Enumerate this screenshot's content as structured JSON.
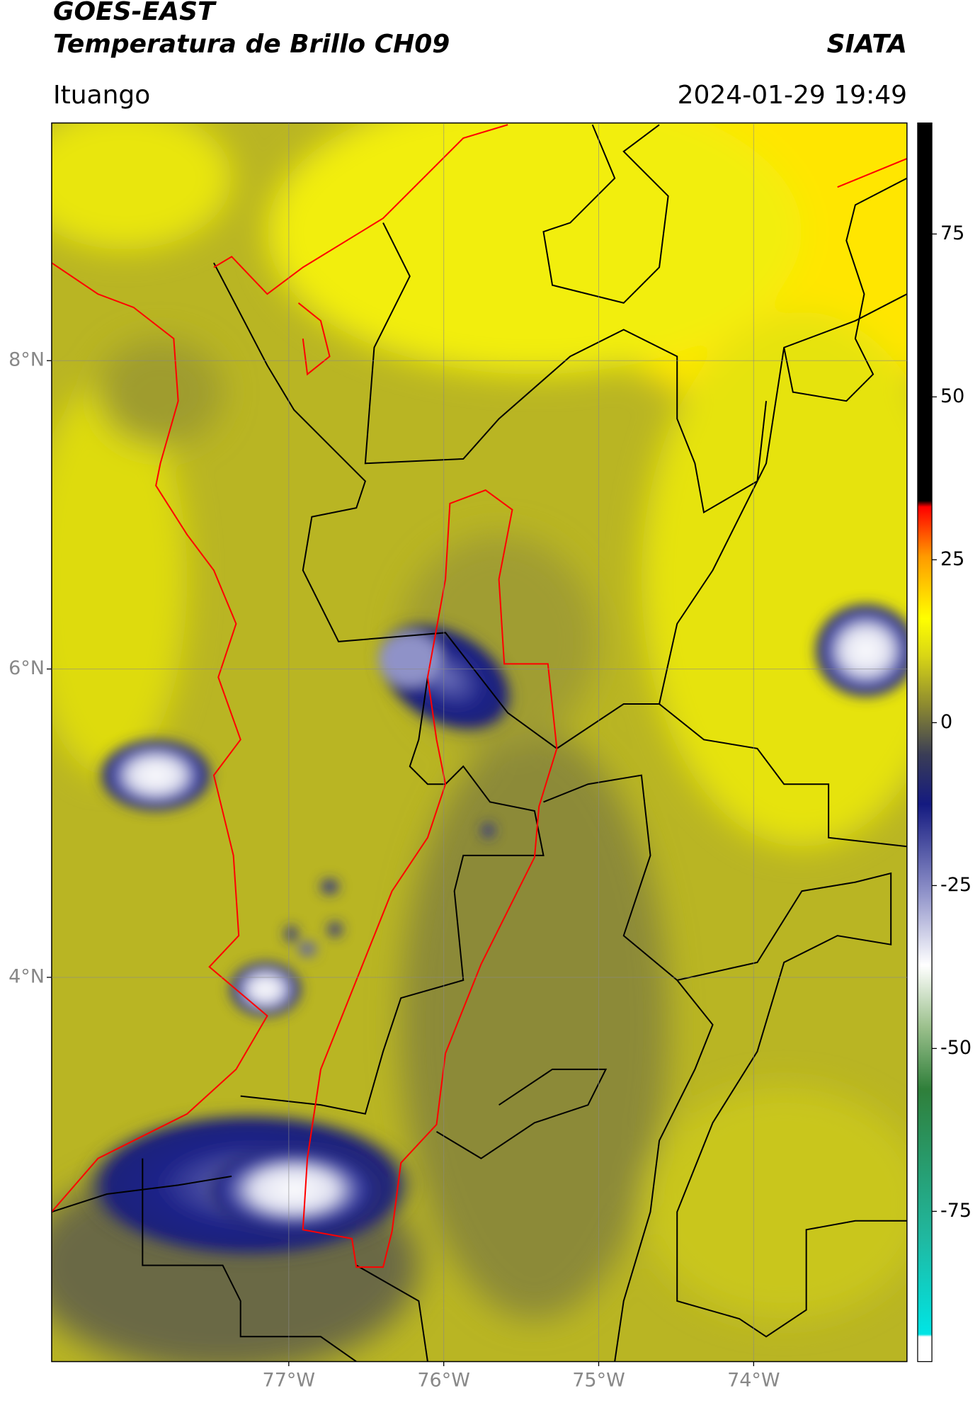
{
  "header": {
    "title": "GOES-EAST",
    "subtitle": "Temperatura de Brillo CH09",
    "organization": "SIATA",
    "region": "Ituango",
    "datetime": "2024-01-29 19:49"
  },
  "map": {
    "xlim": [
      -78.53,
      -73.01
    ],
    "ylim": [
      1.51,
      9.54
    ],
    "xticks": [
      {
        "value": -77,
        "label": "77°W"
      },
      {
        "value": -76,
        "label": "76°W"
      },
      {
        "value": -75,
        "label": "75°W"
      },
      {
        "value": -74,
        "label": "74°W"
      }
    ],
    "yticks": [
      {
        "value": 4,
        "label": "4°N"
      },
      {
        "value": 6,
        "label": "6°N"
      },
      {
        "value": 8,
        "label": "8°N"
      }
    ],
    "grid": true,
    "colorbar": {
      "lim": [
        -98,
        92
      ],
      "ticks": [
        -75,
        -50,
        -25,
        0,
        25,
        50,
        75
      ]
    }
  }
}
